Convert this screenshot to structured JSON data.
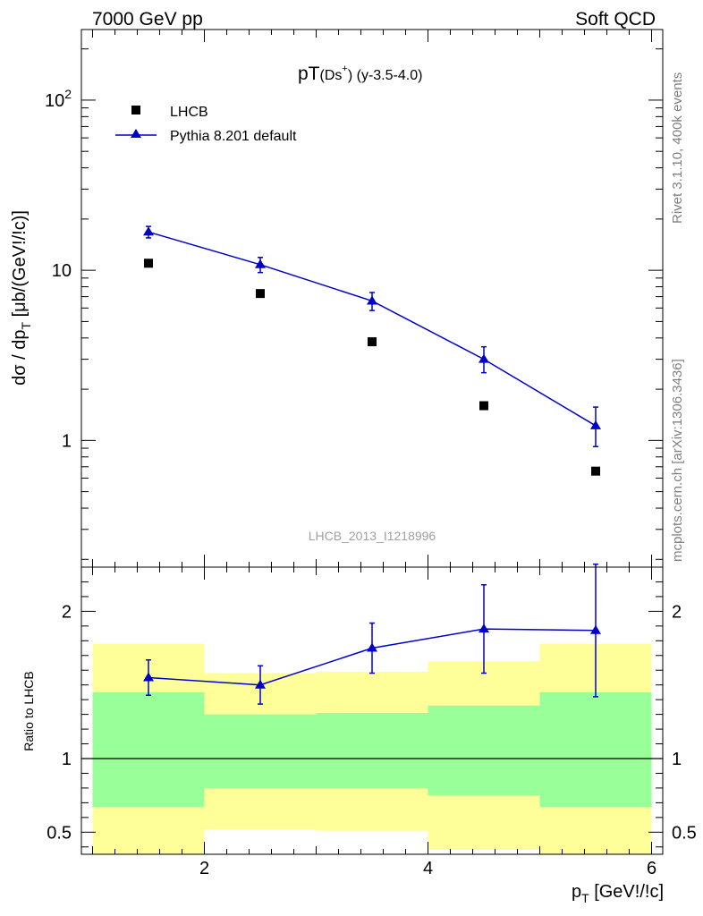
{
  "header": {
    "left": "7000 GeV pp",
    "right": "Soft QCD"
  },
  "side_labels": {
    "rivet": "Rivet 3.1.10,  400k events",
    "mcplots": "mcplots.cern.ch [arXiv:1306.3436]"
  },
  "colors": {
    "data": "#000000",
    "mc": "#0000cc",
    "band_inner": "#99ff99",
    "band_outer": "#ffff99"
  },
  "chart_data": [
    {
      "type": "scatter",
      "title": "pT(Ds⁺) (y-3.5-4.0)",
      "title_main": "pT",
      "title_sub": "(Ds",
      "title_sup": "+",
      "title_close": ")",
      "title_rest": " (y-3.5-4.0)",
      "ylabel": "dσ / dp",
      "ylabel_sub": "T",
      "ylabel_rest": " [μb/(GeV!/!c)]",
      "yscale": "log",
      "xlim": [
        0.9,
        6.1
      ],
      "ylim": [
        0.18,
        260
      ],
      "y_ticks": [
        {
          "value": 100,
          "base": "10",
          "exp": "2"
        },
        {
          "value": 10,
          "base": "10",
          "exp": ""
        },
        {
          "value": 1,
          "base": "1",
          "exp": ""
        }
      ],
      "watermark": "LHCB_2013_I1218996",
      "legend_position": "top-left",
      "series": [
        {
          "name": "LHCB",
          "marker": "square",
          "x": [
            1.5,
            2.5,
            3.5,
            4.5,
            5.5
          ],
          "y": [
            11.0,
            7.3,
            3.8,
            1.6,
            0.66
          ]
        },
        {
          "name": "Pythia 8.201 default",
          "marker": "triangle",
          "x": [
            1.5,
            2.5,
            3.5,
            4.5,
            5.5
          ],
          "y": [
            16.8,
            10.8,
            6.6,
            3.0,
            1.22
          ],
          "err_up": [
            1.3,
            1.1,
            0.8,
            0.55,
            0.35
          ],
          "err_down": [
            1.3,
            1.1,
            0.8,
            0.5,
            0.3
          ]
        }
      ]
    },
    {
      "type": "line",
      "ylabel": "Ratio to LHCB",
      "xlabel": "p",
      "xlabel_sub": "T",
      "xlabel_rest": " [GeV!/!c]",
      "xlim": [
        0.9,
        6.1
      ],
      "ylim": [
        0.35,
        2.3
      ],
      "x_ticks": [
        2,
        4,
        6
      ],
      "y_ticks": [
        {
          "value": 2,
          "label": "2"
        },
        {
          "value": 1,
          "label": "1"
        },
        {
          "value": 0.5,
          "label": "0.5"
        }
      ],
      "bins": [
        {
          "x0": 1,
          "x1": 2,
          "inner": [
            0.67,
            1.45
          ],
          "outer": [
            0.35,
            1.78
          ]
        },
        {
          "x0": 2,
          "x1": 3,
          "inner": [
            0.8,
            1.3
          ],
          "outer": [
            0.52,
            1.58
          ]
        },
        {
          "x0": 3,
          "x1": 4,
          "inner": [
            0.8,
            1.31
          ],
          "outer": [
            0.51,
            1.59
          ]
        },
        {
          "x0": 4,
          "x1": 5,
          "inner": [
            0.75,
            1.36
          ],
          "outer": [
            0.38,
            1.66
          ]
        },
        {
          "x0": 5,
          "x1": 6,
          "inner": [
            0.67,
            1.45
          ],
          "outer": [
            0.35,
            1.78
          ]
        }
      ],
      "series": [
        {
          "name": "Pythia 8.201 default",
          "x": [
            1.5,
            2.5,
            3.5,
            4.5,
            5.5
          ],
          "y": [
            1.55,
            1.5,
            1.75,
            1.88,
            1.87
          ],
          "err_up": [
            0.12,
            0.13,
            0.17,
            0.3,
            0.45
          ],
          "err_down": [
            0.12,
            0.13,
            0.17,
            0.3,
            0.45
          ]
        }
      ]
    }
  ]
}
